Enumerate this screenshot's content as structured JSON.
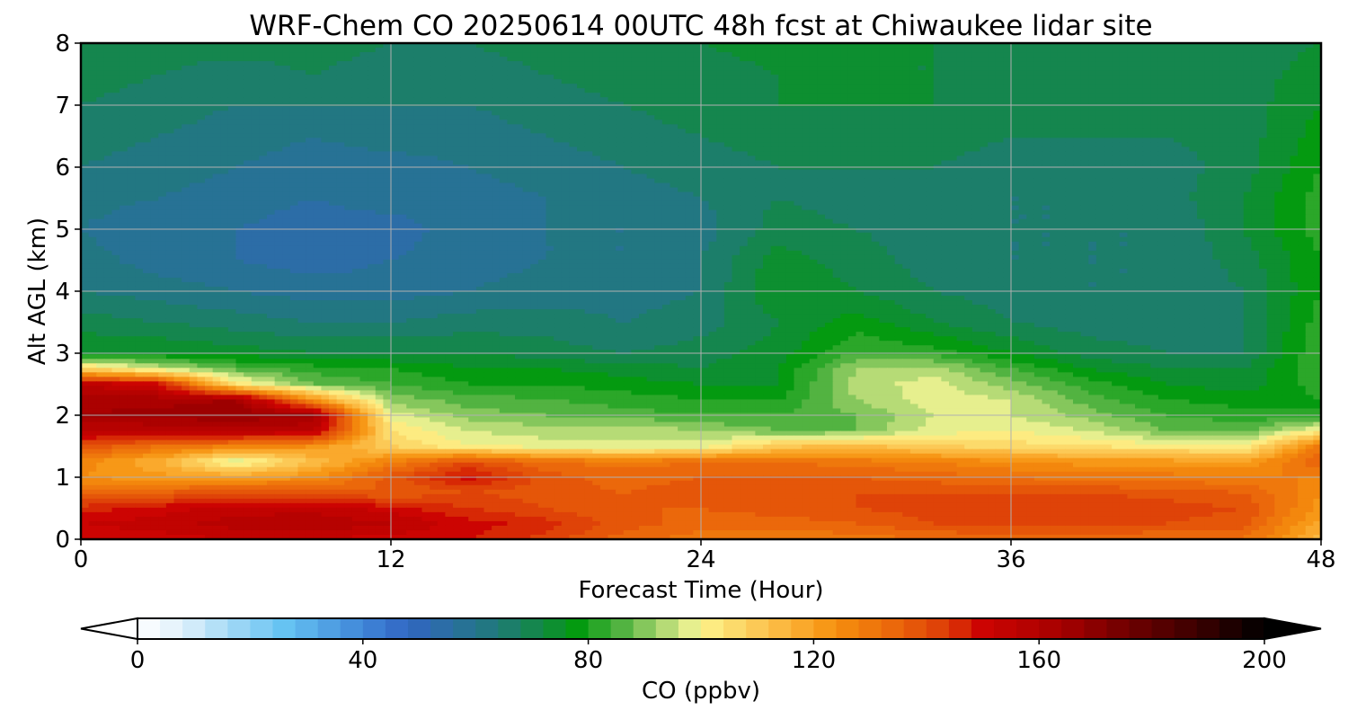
{
  "chart_data": {
    "type": "heatmap",
    "title": "WRF-Chem CO  20250614 00UTC 48h fcst at Chiwaukee lidar site",
    "xlabel": "Forecast Time (Hour)",
    "ylabel": "Alt AGL (km)",
    "xlim": [
      0,
      48
    ],
    "ylim": [
      0,
      8
    ],
    "xticks": [
      0,
      12,
      24,
      36,
      48
    ],
    "yticks": [
      0,
      1,
      2,
      3,
      4,
      5,
      6,
      7,
      8
    ],
    "grid": true,
    "colorbar": {
      "label": "CO  (ppbv)",
      "min": 0,
      "max": 200,
      "ticks": [
        0,
        40,
        80,
        120,
        160,
        200
      ],
      "extend": "both",
      "placement": "bottom",
      "colors": [
        {
          "v": 0,
          "c": "#ffffff"
        },
        {
          "v": 8,
          "c": "#dff0fb"
        },
        {
          "v": 16,
          "c": "#a6daf6"
        },
        {
          "v": 26,
          "c": "#66c3f2"
        },
        {
          "v": 40,
          "c": "#3f86d8"
        },
        {
          "v": 48,
          "c": "#3166c2"
        },
        {
          "v": 56,
          "c": "#2a6f9e"
        },
        {
          "v": 64,
          "c": "#1f7a78"
        },
        {
          "v": 72,
          "c": "#128a40"
        },
        {
          "v": 78,
          "c": "#049a10"
        },
        {
          "v": 86,
          "c": "#52b341"
        },
        {
          "v": 92,
          "c": "#9ed16a"
        },
        {
          "v": 98,
          "c": "#e6ef8e"
        },
        {
          "v": 100,
          "c": "#fdf38c"
        },
        {
          "v": 108,
          "c": "#fcd160"
        },
        {
          "v": 116,
          "c": "#fbb136"
        },
        {
          "v": 124,
          "c": "#f58f0d"
        },
        {
          "v": 134,
          "c": "#eb680b"
        },
        {
          "v": 144,
          "c": "#dc3a07"
        },
        {
          "v": 150,
          "c": "#cc0402"
        },
        {
          "v": 164,
          "c": "#a60000"
        },
        {
          "v": 176,
          "c": "#6e0000"
        },
        {
          "v": 188,
          "c": "#3c0000"
        },
        {
          "v": 200,
          "c": "#000000"
        }
      ]
    },
    "data": {
      "x": [
        0,
        3,
        6,
        9,
        12,
        15,
        18,
        21,
        24,
        27,
        30,
        33,
        36,
        39,
        42,
        45,
        48
      ],
      "y": [
        0,
        0.25,
        0.5,
        0.75,
        1,
        1.25,
        1.5,
        1.75,
        2,
        2.25,
        2.5,
        2.75,
        3,
        3.5,
        4,
        4.5,
        5,
        5.5,
        6,
        6.5,
        7,
        7.5,
        8
      ],
      "z": [
        [
          148,
          150,
          152,
          152,
          150,
          148,
          142,
          134,
          130,
          128,
          130,
          132,
          134,
          134,
          132,
          132,
          114
        ],
        [
          152,
          154,
          158,
          160,
          156,
          150,
          146,
          138,
          134,
          134,
          136,
          140,
          142,
          142,
          140,
          138,
          118
        ],
        [
          146,
          150,
          154,
          154,
          150,
          144,
          140,
          136,
          136,
          138,
          140,
          142,
          142,
          144,
          142,
          140,
          122
        ],
        [
          134,
          136,
          140,
          138,
          136,
          140,
          138,
          136,
          138,
          140,
          140,
          140,
          140,
          140,
          138,
          136,
          124
        ],
        [
          124,
          122,
          120,
          124,
          138,
          150,
          138,
          134,
          136,
          136,
          136,
          134,
          132,
          130,
          130,
          128,
          128
        ],
        [
          126,
          116,
          96,
          112,
          128,
          140,
          132,
          130,
          132,
          132,
          130,
          128,
          124,
          122,
          122,
          120,
          136
        ],
        [
          140,
          132,
          128,
          124,
          108,
          100,
          98,
          96,
          98,
          110,
          114,
          108,
          106,
          104,
          102,
          100,
          130
        ],
        [
          156,
          156,
          158,
          156,
          104,
          96,
          94,
          96,
          92,
          88,
          88,
          98,
          100,
          96,
          88,
          86,
          102
        ],
        [
          164,
          166,
          168,
          164,
          98,
          90,
          88,
          86,
          84,
          84,
          88,
          96,
          96,
          90,
          84,
          82,
          80
        ],
        [
          162,
          162,
          164,
          124,
          90,
          86,
          84,
          82,
          80,
          80,
          92,
          98,
          96,
          86,
          80,
          78,
          80
        ],
        [
          156,
          150,
          104,
          88,
          84,
          80,
          80,
          78,
          76,
          76,
          94,
          98,
          90,
          82,
          76,
          74,
          82
        ],
        [
          108,
          96,
          86,
          82,
          80,
          76,
          76,
          74,
          72,
          76,
          92,
          94,
          84,
          76,
          72,
          72,
          84
        ],
        [
          76,
          76,
          74,
          72,
          72,
          72,
          70,
          68,
          70,
          74,
          84,
          82,
          76,
          70,
          68,
          68,
          84
        ],
        [
          70,
          68,
          66,
          64,
          64,
          66,
          66,
          64,
          66,
          72,
          78,
          72,
          68,
          66,
          66,
          68,
          82
        ],
        [
          64,
          62,
          60,
          58,
          58,
          60,
          62,
          62,
          64,
          76,
          72,
          68,
          66,
          64,
          64,
          68,
          80
        ],
        [
          62,
          58,
          56,
          54,
          56,
          58,
          60,
          60,
          64,
          74,
          70,
          66,
          64,
          64,
          64,
          70,
          80
        ],
        [
          60,
          56,
          56,
          54,
          54,
          58,
          60,
          60,
          62,
          70,
          68,
          66,
          64,
          64,
          64,
          72,
          82
        ],
        [
          62,
          60,
          58,
          56,
          58,
          58,
          60,
          62,
          64,
          68,
          66,
          66,
          64,
          64,
          66,
          72,
          82
        ],
        [
          64,
          62,
          60,
          58,
          58,
          60,
          62,
          64,
          66,
          68,
          68,
          68,
          66,
          66,
          66,
          70,
          80
        ],
        [
          66,
          64,
          62,
          60,
          62,
          62,
          64,
          66,
          68,
          70,
          70,
          70,
          68,
          68,
          68,
          70,
          78
        ],
        [
          68,
          66,
          64,
          64,
          64,
          64,
          66,
          68,
          70,
          72,
          72,
          72,
          70,
          70,
          68,
          70,
          76
        ],
        [
          70,
          68,
          66,
          68,
          66,
          66,
          68,
          70,
          70,
          72,
          72,
          72,
          70,
          70,
          68,
          70,
          74
        ],
        [
          72,
          70,
          70,
          70,
          68,
          68,
          70,
          72,
          72,
          74,
          72,
          72,
          70,
          70,
          70,
          70,
          72
        ]
      ]
    }
  }
}
